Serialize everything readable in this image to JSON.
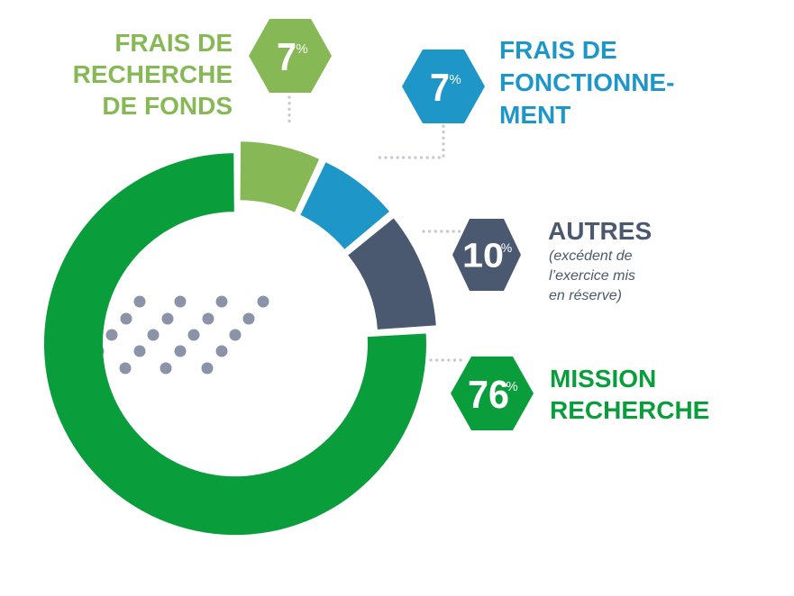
{
  "chart_data": {
    "type": "pie",
    "categories": [
      "Frais de recherche de fonds",
      "Frais de fonctionnement",
      "Autres",
      "Mission recherche"
    ],
    "values": [
      7,
      7,
      10,
      76
    ],
    "unit": "%",
    "colors": [
      "#86b955",
      "#1e96c8",
      "#4a596f",
      "#0a9d3c"
    ],
    "labels": [
      {
        "pct": "7",
        "sym": "%",
        "lines": [
          "FRAIS DE",
          "RECHERCHE",
          "DE FONDS"
        ],
        "sub": []
      },
      {
        "pct": "7",
        "sym": "%",
        "lines": [
          "FRAIS DE",
          "FONCTIONNE-",
          "MENT"
        ],
        "sub": []
      },
      {
        "pct": "10",
        "sym": "%",
        "lines": [
          "AUTRES"
        ],
        "sub": [
          "(excédent de",
          "l’exercice mis",
          "en réserve)"
        ]
      },
      {
        "pct": "76",
        "sym": "%",
        "lines": [
          "MISSION",
          "RECHERCHE"
        ],
        "sub": []
      }
    ],
    "style": "donut with exploded slices, hexagon value badges and dotted leader lines",
    "decoration": {
      "dot_color": "#8b93a8"
    }
  }
}
